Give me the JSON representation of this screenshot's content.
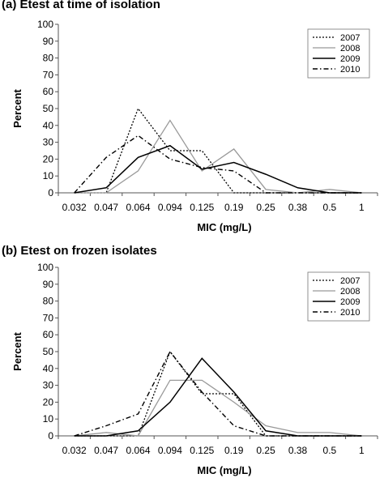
{
  "chart_data": [
    {
      "type": "line",
      "title": "(a) Etest at time of isolation",
      "xlabel": "MIC (mg/L)",
      "ylabel": "Percent",
      "categories": [
        "0.032",
        "0.047",
        "0.064",
        "0.094",
        "0.125",
        "0.19",
        "0.25",
        "0.38",
        "0.5",
        "1"
      ],
      "ylim": [
        0,
        100
      ],
      "yticks": [
        0,
        10,
        20,
        30,
        40,
        50,
        60,
        70,
        80,
        90,
        100
      ],
      "grid": false,
      "legend": "top-right",
      "series": [
        {
          "name": "2007",
          "style": "dotted",
          "color": "#000000",
          "values": [
            0,
            0,
            50,
            25,
            25,
            0,
            0,
            0,
            0,
            0
          ]
        },
        {
          "name": "2008",
          "style": "solid-gray",
          "color": "#999999",
          "values": [
            0,
            0,
            13,
            43,
            13,
            26,
            2,
            0,
            2,
            0
          ]
        },
        {
          "name": "2009",
          "style": "solid",
          "color": "#000000",
          "values": [
            0,
            3,
            21,
            28,
            14,
            18,
            11,
            3,
            0,
            0
          ]
        },
        {
          "name": "2010",
          "style": "dash-dot",
          "color": "#000000",
          "values": [
            0,
            21,
            34,
            20,
            15,
            13,
            0,
            0,
            0,
            0
          ]
        }
      ]
    },
    {
      "type": "line",
      "title": "(b) Etest on frozen isolates",
      "xlabel": "MIC (mg/L)",
      "ylabel": "Percent",
      "categories": [
        "0.032",
        "0.047",
        "0.064",
        "0.094",
        "0.125",
        "0.19",
        "0.25",
        "0.38",
        "0.5",
        "1"
      ],
      "ylim": [
        0,
        100
      ],
      "yticks": [
        0,
        10,
        20,
        30,
        40,
        50,
        60,
        70,
        80,
        90,
        100
      ],
      "grid": false,
      "legend": "top-right",
      "series": [
        {
          "name": "2007",
          "style": "dotted",
          "color": "#000000",
          "values": [
            0,
            0,
            0,
            50,
            25,
            25,
            0,
            0,
            0,
            0
          ]
        },
        {
          "name": "2008",
          "style": "solid-gray",
          "color": "#999999",
          "values": [
            0,
            2,
            0,
            33,
            33,
            20,
            6,
            2,
            2,
            0
          ]
        },
        {
          "name": "2009",
          "style": "solid",
          "color": "#000000",
          "values": [
            0,
            0,
            3,
            20,
            46,
            26,
            3,
            0,
            0,
            0
          ]
        },
        {
          "name": "2010",
          "style": "dash-dot",
          "color": "#000000",
          "values": [
            0,
            6,
            13,
            50,
            26,
            6,
            0,
            0,
            0,
            0
          ]
        }
      ]
    }
  ]
}
